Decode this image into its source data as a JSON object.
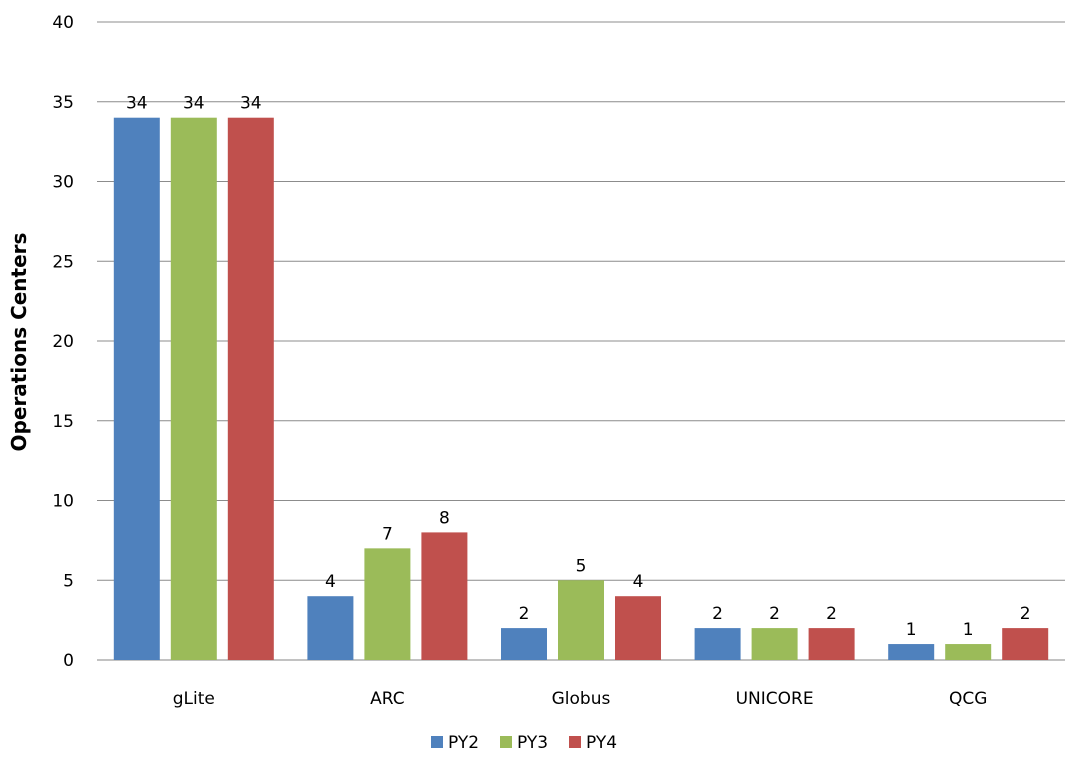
{
  "chart_data": {
    "type": "bar",
    "title": "",
    "xlabel": "",
    "ylabel": "Operations Centers",
    "ylim": [
      0,
      40
    ],
    "yticks": [
      0,
      5,
      10,
      15,
      20,
      25,
      30,
      35,
      40
    ],
    "grid": true,
    "legend_position": "bottom",
    "categories": [
      "gLite",
      "ARC",
      "Globus",
      "UNICORE",
      "QCG"
    ],
    "series": [
      {
        "name": "PY2",
        "color": "#4F81BD",
        "values": [
          34,
          4,
          2,
          2,
          1
        ]
      },
      {
        "name": "PY3",
        "color": "#9BBB59",
        "values": [
          34,
          7,
          5,
          2,
          1
        ]
      },
      {
        "name": "PY4",
        "color": "#C0504D",
        "values": [
          34,
          8,
          4,
          2,
          2
        ]
      }
    ]
  }
}
